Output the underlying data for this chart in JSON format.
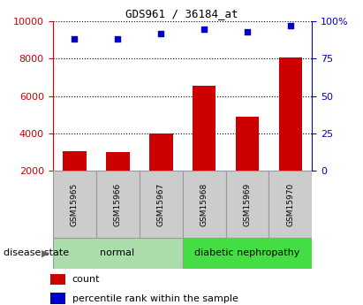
{
  "title": "GDS961 / 36184_at",
  "samples": [
    "GSM15965",
    "GSM15966",
    "GSM15967",
    "GSM15968",
    "GSM15969",
    "GSM15970"
  ],
  "counts": [
    3050,
    2980,
    4020,
    6550,
    4880,
    8050
  ],
  "percentiles": [
    88,
    88,
    92,
    95,
    93,
    97
  ],
  "bar_color": "#cc0000",
  "dot_color": "#0000cc",
  "left_ylim": [
    2000,
    10000
  ],
  "left_yticks": [
    2000,
    4000,
    6000,
    8000,
    10000
  ],
  "right_ylim": [
    0,
    100
  ],
  "right_yticks": [
    0,
    25,
    50,
    75,
    100
  ],
  "right_yticklabels": [
    "0",
    "25",
    "50",
    "75",
    "100%"
  ],
  "groups": [
    {
      "label": "normal",
      "samples": [
        0,
        1,
        2
      ],
      "color": "#aaddaa"
    },
    {
      "label": "diabetic nephropathy",
      "samples": [
        3,
        4,
        5
      ],
      "color": "#44dd44"
    }
  ],
  "group_label_prefix": "disease state",
  "legend_count_label": "count",
  "legend_percentile_label": "percentile rank within the sample",
  "bar_width": 0.55,
  "grid_color": "#000000",
  "left_axis_color": "#cc0000",
  "right_axis_color": "#0000cc",
  "sample_box_color": "#cccccc",
  "sample_box_edge": "#999999"
}
